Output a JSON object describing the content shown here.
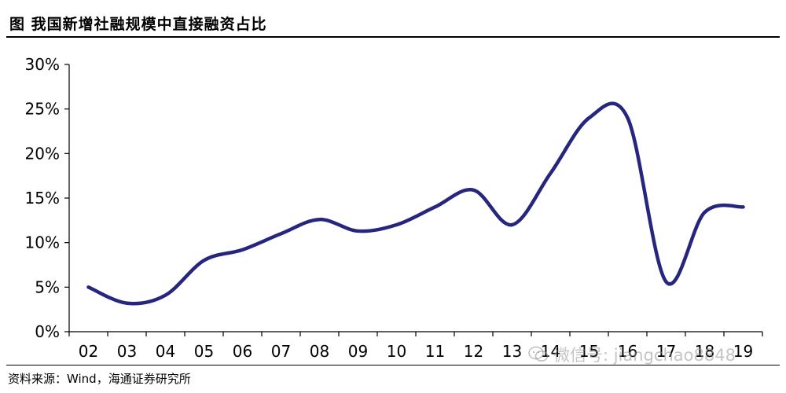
{
  "header": {
    "title": "图  我国新增社融规模中直接融资占比"
  },
  "footer": {
    "source": "资料来源：Wind，海通证券研究所"
  },
  "watermark": {
    "text": "微信号: jiangchao8848"
  },
  "colors": {
    "line": "#26267f",
    "axis": "#000000"
  },
  "chart_data": {
    "type": "line",
    "categories": [
      "02",
      "03",
      "04",
      "05",
      "06",
      "07",
      "08",
      "09",
      "10",
      "11",
      "12",
      "13",
      "14",
      "15",
      "16",
      "17",
      "18",
      "19"
    ],
    "series": [
      {
        "values": [
          5.0,
          3.2,
          4.1,
          8.0,
          9.2,
          11.0,
          12.6,
          11.3,
          12.0,
          14.0,
          15.9,
          12.0,
          17.8,
          24.0,
          24.0,
          5.6,
          13.4,
          14.0
        ]
      }
    ],
    "ylim": [
      0,
      30
    ],
    "yticks": [
      0,
      5,
      10,
      15,
      20,
      25,
      30
    ],
    "ytick_labels": [
      "0%",
      "5%",
      "10%",
      "15%",
      "20%",
      "25%",
      "30%"
    ],
    "grid": false
  }
}
